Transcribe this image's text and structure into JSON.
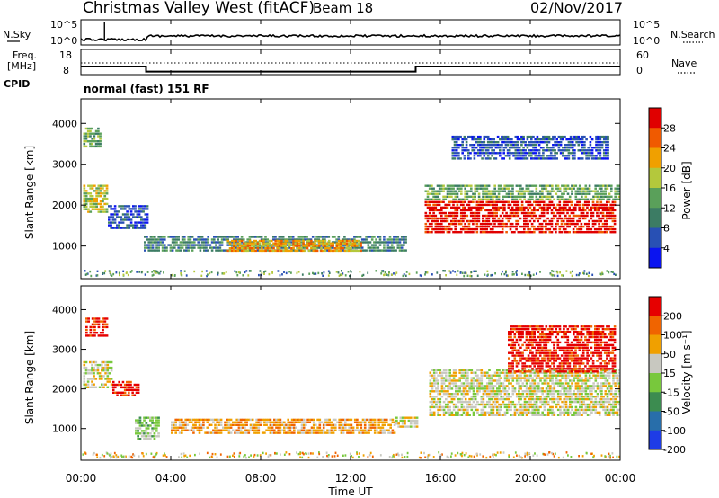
{
  "header": {
    "title": "Christmas Valley West (fitACF)",
    "beam": "Beam 18",
    "date": "02/Nov/2017",
    "mode": "normal (fast) 151 RF"
  },
  "side_labels": {
    "nsky": "N.Sky",
    "nsearch": "N.Search",
    "freq": "Freq.",
    "freq_unit": "[MHz]",
    "nave": "Nave",
    "cpid": "CPID"
  },
  "time_axis": {
    "label": "Time UT",
    "ticks": [
      "00:00",
      "04:00",
      "08:00",
      "12:00",
      "16:00",
      "20:00",
      "00:00"
    ],
    "range_hours": [
      0,
      24
    ]
  },
  "noise_panel": {
    "left_ticks": [
      "10^5",
      "10^0"
    ],
    "right_ticks": [
      "10^5",
      "10^0"
    ]
  },
  "freq_panel": {
    "left_ticks": [
      "18",
      "8"
    ],
    "right_ticks": [
      "60",
      "0"
    ],
    "steps": [
      {
        "t0": 0,
        "t1": 2.9,
        "freq_mhz": 11.2
      },
      {
        "t0": 2.9,
        "t1": 14.9,
        "freq_mhz": 9.2
      },
      {
        "t0": 14.9,
        "t1": 24,
        "freq_mhz": 11.2
      }
    ]
  },
  "chart_data": [
    {
      "type": "heatmap",
      "name": "power",
      "ylabel": "Slant Range [km]",
      "yticks": [
        "1000",
        "2000",
        "3000",
        "4000"
      ],
      "ylim": [
        200,
        4600
      ],
      "colorbar_label": "Power [dB]",
      "colorbar_ticks": [
        "4",
        "8",
        "12",
        "16",
        "20",
        "24",
        "28"
      ],
      "colorbar_colors": [
        "#0a14f0",
        "#2850b4",
        "#3c7c64",
        "#5aa05a",
        "#b4c83c",
        "#f0a000",
        "#f05a00",
        "#e00000"
      ],
      "regions": [
        {
          "t": [
            0.1,
            0.9
          ],
          "r": [
            3400,
            3900
          ],
          "level": 3
        },
        {
          "t": [
            0.1,
            1.2
          ],
          "r": [
            1800,
            2500
          ],
          "level": 4
        },
        {
          "t": [
            1.2,
            3.0
          ],
          "r": [
            1400,
            2000
          ],
          "level": 1
        },
        {
          "t": [
            2.8,
            14.5
          ],
          "r": [
            850,
            1250
          ],
          "level": 2
        },
        {
          "t": [
            6.5,
            12.5
          ],
          "r": [
            850,
            1150
          ],
          "level": 5
        },
        {
          "t": [
            15.3,
            23.8
          ],
          "r": [
            1300,
            2100
          ],
          "level": 7
        },
        {
          "t": [
            15.3,
            24.0
          ],
          "r": [
            2100,
            2500
          ],
          "level": 3
        },
        {
          "t": [
            16.5,
            23.5
          ],
          "r": [
            3100,
            3700
          ],
          "level": 1
        }
      ]
    },
    {
      "type": "heatmap",
      "name": "velocity",
      "ylabel": "Slant Range [km]",
      "yticks": [
        "1000",
        "2000",
        "3000",
        "4000"
      ],
      "ylim": [
        200,
        4600
      ],
      "colorbar_label": "Velocity [m s⁻¹]",
      "colorbar_ticks": [
        "200",
        "100",
        "50",
        "15",
        "-15",
        "-50",
        "-100",
        "-200"
      ],
      "colorbar_colors": [
        "#1e3ce6",
        "#286eaa",
        "#3c8c50",
        "#78c83c",
        "#c8c8c0",
        "#f0a000",
        "#f06400",
        "#e60000"
      ],
      "regions": [
        {
          "t": [
            0.2,
            1.2
          ],
          "r": [
            3300,
            3800
          ],
          "level": 7
        },
        {
          "t": [
            0.1,
            1.4
          ],
          "r": [
            2000,
            2700
          ],
          "level": 4
        },
        {
          "t": [
            1.4,
            2.6
          ],
          "r": [
            1800,
            2200
          ],
          "level": 7
        },
        {
          "t": [
            2.4,
            3.5
          ],
          "r": [
            700,
            1300
          ],
          "level": 3
        },
        {
          "t": [
            4.0,
            14.0
          ],
          "r": [
            850,
            1250
          ],
          "level": 5
        },
        {
          "t": [
            14.0,
            15.0
          ],
          "r": [
            1000,
            1300
          ],
          "level": 4
        },
        {
          "t": [
            15.5,
            24.0
          ],
          "r": [
            1300,
            2500
          ],
          "level": 4
        },
        {
          "t": [
            19.0,
            23.8
          ],
          "r": [
            2400,
            3600
          ],
          "level": 7
        }
      ]
    }
  ]
}
